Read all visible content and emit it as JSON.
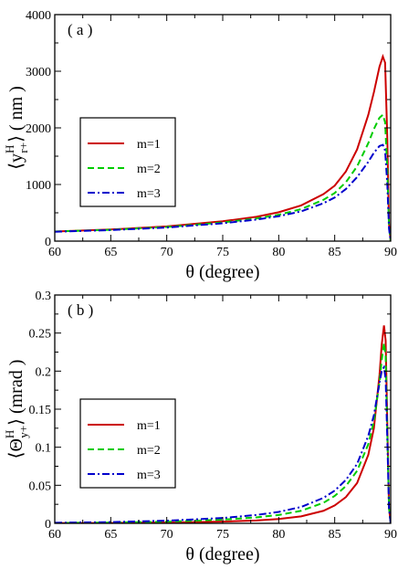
{
  "chart_data": [
    {
      "type": "line",
      "panel_label": "( a )",
      "xlabel": "θ  (degree)",
      "ylabel": {
        "bracket_open": "⟨",
        "symbol": "y",
        "superscript": "H",
        "subscript": "r+",
        "bracket_close": "⟩",
        "unit": " ( nm )"
      },
      "xlim": [
        60,
        90
      ],
      "ylim": [
        0,
        4000
      ],
      "xticks": [
        "60",
        "65",
        "70",
        "75",
        "80",
        "85",
        "90"
      ],
      "yticks": [
        "0",
        "1000",
        "2000",
        "3000",
        "4000"
      ],
      "legend_position": "center-left",
      "series": [
        {
          "name": "m=1",
          "color": "#cc0000",
          "dash": "solid",
          "x": [
            60,
            65,
            70,
            75,
            78,
            80,
            82,
            84,
            85,
            86,
            87,
            88,
            88.5,
            89,
            89.3,
            89.5,
            89.7,
            89.85,
            90
          ],
          "y": [
            170,
            205,
            260,
            350,
            430,
            510,
            630,
            830,
            980,
            1230,
            1620,
            2230,
            2630,
            3080,
            3260,
            3150,
            1800,
            300,
            0
          ]
        },
        {
          "name": "m=2",
          "color": "#00cc00",
          "dash": "dashed",
          "x": [
            60,
            65,
            70,
            75,
            78,
            80,
            82,
            84,
            85,
            86,
            87,
            88,
            88.5,
            89,
            89.3,
            89.5,
            89.7,
            89.85,
            90
          ],
          "y": [
            170,
            200,
            250,
            330,
            400,
            465,
            565,
            730,
            850,
            1040,
            1320,
            1730,
            1980,
            2180,
            2230,
            2100,
            1250,
            250,
            0
          ]
        },
        {
          "name": "m=3",
          "color": "#0000cc",
          "dash": "dashdot",
          "x": [
            60,
            65,
            70,
            75,
            78,
            80,
            82,
            84,
            85,
            86,
            87,
            88,
            88.5,
            89,
            89.3,
            89.5,
            89.7,
            89.85,
            90
          ],
          "y": [
            165,
            195,
            240,
            315,
            380,
            440,
            525,
            670,
            770,
            920,
            1130,
            1400,
            1560,
            1680,
            1700,
            1600,
            1000,
            220,
            0
          ]
        }
      ]
    },
    {
      "type": "line",
      "panel_label": "( b )",
      "xlabel": "θ  (degree)",
      "ylabel": {
        "bracket_open": "⟨",
        "symbol": "Θ",
        "superscript": "H",
        "subscript": "y+",
        "bracket_close": "⟩",
        "unit": "  (mrad )"
      },
      "xlim": [
        60,
        90
      ],
      "ylim": [
        0,
        0.3
      ],
      "xticks": [
        "60",
        "65",
        "70",
        "75",
        "80",
        "85",
        "90"
      ],
      "yticks": [
        "0",
        "0.05",
        "0.1",
        "0.15",
        "0.2",
        "0.25",
        "0.3"
      ],
      "legend_position": "center-left",
      "series": [
        {
          "name": "m=1",
          "color": "#cc0000",
          "dash": "solid",
          "x": [
            60,
            65,
            70,
            75,
            78,
            80,
            82,
            84,
            85,
            86,
            87,
            88,
            88.5,
            89,
            89.2,
            89.4,
            89.55,
            89.7,
            89.85,
            90
          ],
          "y": [
            0.0003,
            0.0005,
            0.001,
            0.0022,
            0.0038,
            0.0057,
            0.0092,
            0.0165,
            0.0235,
            0.0345,
            0.053,
            0.09,
            0.125,
            0.195,
            0.235,
            0.26,
            0.24,
            0.13,
            0.02,
            0
          ]
        },
        {
          "name": "m=2",
          "color": "#00cc00",
          "dash": "dashed",
          "x": [
            60,
            65,
            70,
            75,
            78,
            80,
            82,
            84,
            85,
            86,
            87,
            88,
            88.5,
            89,
            89.2,
            89.4,
            89.55,
            89.7,
            89.85,
            90
          ],
          "y": [
            0.0005,
            0.001,
            0.0022,
            0.0048,
            0.0078,
            0.011,
            0.0165,
            0.027,
            0.036,
            0.049,
            0.069,
            0.104,
            0.134,
            0.185,
            0.215,
            0.237,
            0.22,
            0.12,
            0.02,
            0
          ]
        },
        {
          "name": "m=3",
          "color": "#0000cc",
          "dash": "dashdot",
          "x": [
            60,
            65,
            70,
            75,
            78,
            80,
            82,
            84,
            85,
            86,
            87,
            88,
            88.5,
            89,
            89.2,
            89.4,
            89.55,
            89.7,
            89.85,
            90
          ],
          "y": [
            0.0008,
            0.0016,
            0.0035,
            0.007,
            0.011,
            0.015,
            0.0215,
            0.0335,
            0.043,
            0.057,
            0.078,
            0.115,
            0.142,
            0.185,
            0.2,
            0.205,
            0.19,
            0.11,
            0.02,
            0
          ]
        }
      ]
    }
  ]
}
